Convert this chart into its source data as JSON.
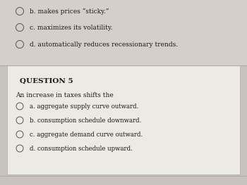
{
  "bg_color": "#c8c3bc",
  "top_bg": "#d4cfc8",
  "bottom_section_bg": "#eceae5",
  "top_lines": [
    "b. makes prices “sticky.”",
    "c. maximizes its volatility.",
    "d. automatically reduces recessionary trends."
  ],
  "question_label": "QUESTION 5",
  "question_text": "An increase in taxes shifts the",
  "options": [
    "a. aggregate supply curve outward.",
    "b. consumption schedule downward.",
    "c. aggregate demand curve outward.",
    "d. consumption schedule upward."
  ],
  "divider_color": "#b0aba4",
  "text_color": "#1a1a1a",
  "circle_edge_color": "#555555",
  "font_size_top": 6.5,
  "font_size_label": 7.5,
  "font_size_body": 6.5,
  "font_size_options": 6.2
}
